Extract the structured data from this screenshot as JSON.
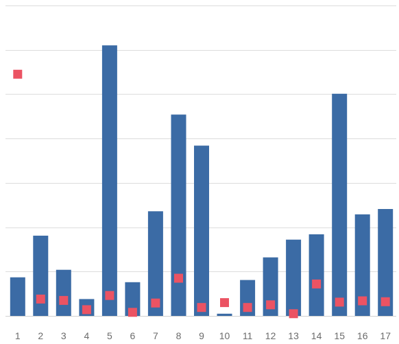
{
  "chart_data": {
    "type": "bar",
    "categories": [
      "1",
      "2",
      "3",
      "4",
      "5",
      "6",
      "7",
      "8",
      "9",
      "10",
      "11",
      "12",
      "13",
      "14",
      "15",
      "16",
      "17"
    ],
    "ylim": [
      0,
      70
    ],
    "grid": true,
    "series": [
      {
        "kind": "bar",
        "color": "#3b6ba5",
        "values": [
          8.7,
          18.1,
          10.4,
          3.8,
          61.0,
          7.6,
          23.6,
          45.4,
          38.4,
          0.5,
          8.1,
          13.2,
          17.2,
          18.4,
          50.1,
          22.9,
          24.1
        ]
      },
      {
        "kind": "marker",
        "color": "#eb5363",
        "values": [
          54.5,
          3.8,
          3.5,
          1.4,
          4.6,
          0.8,
          2.9,
          8.5,
          1.9,
          3.0,
          1.9,
          2.5,
          0.5,
          7.2,
          3.1,
          3.4,
          3.2
        ]
      }
    ]
  }
}
